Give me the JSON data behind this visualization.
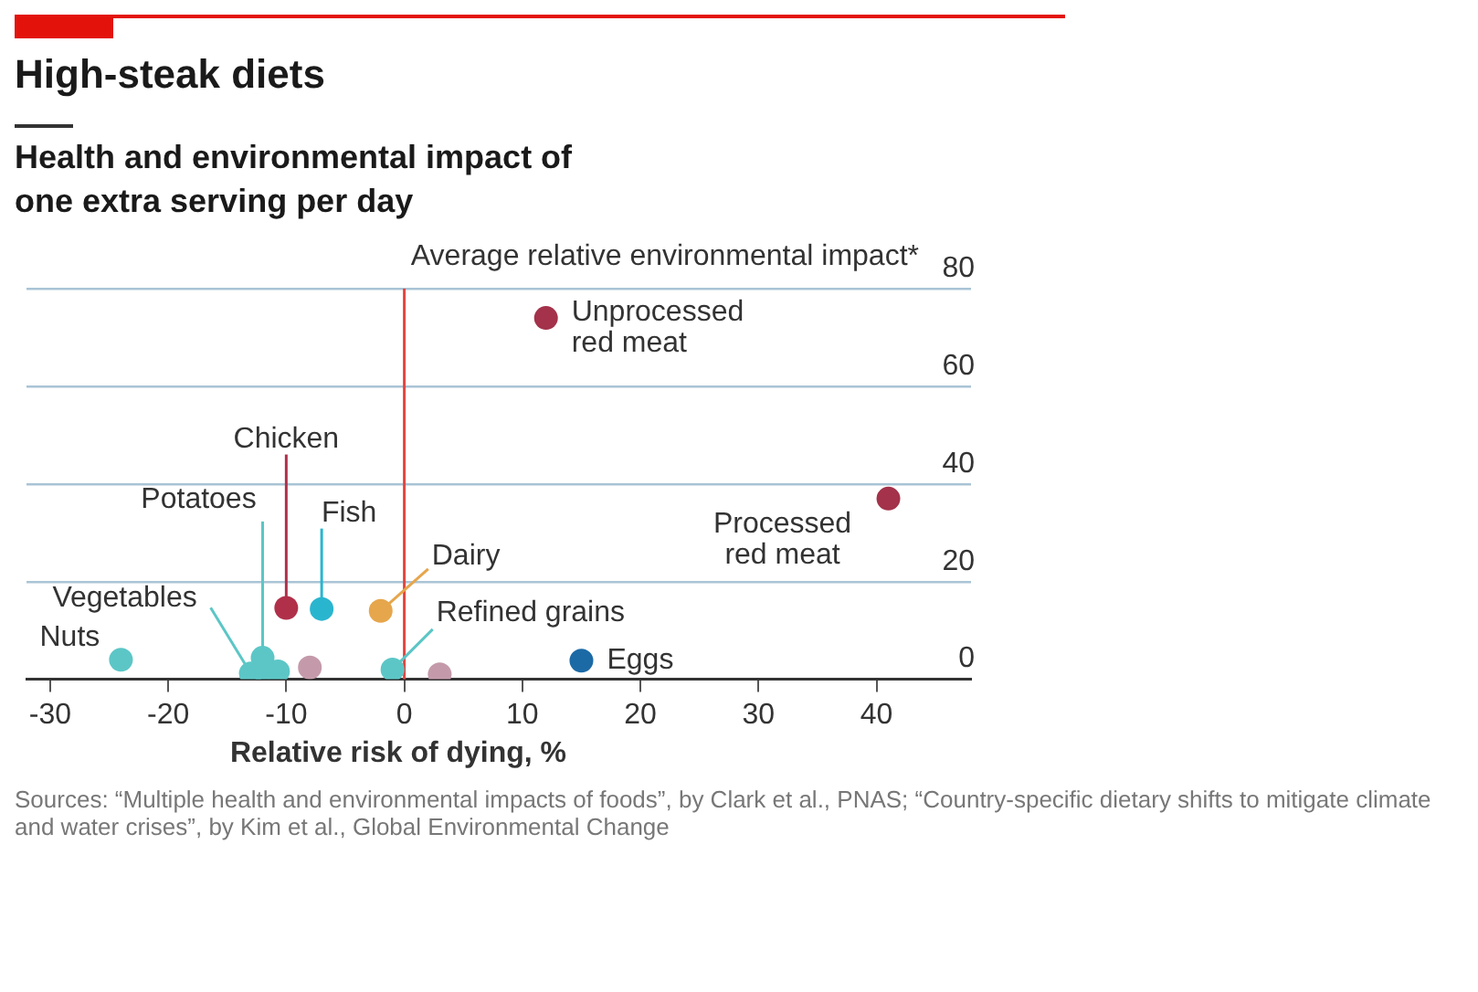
{
  "chart_data": {
    "type": "scatter",
    "title": "High-steak diets",
    "subtitle": "Health and environmental impact of one extra serving per day",
    "xlabel": "Relative risk of dying, %",
    "ylabel": "Average relative environmental impact*",
    "annotations": [
      "Sources: “Multiple health and environmental impacts of foods”, by Clark et al., PNAS; “Country-specific dietary shifts to mitigate climate and water crises”, by Kim et al., Global Environmental Change"
    ],
    "xlim": [
      -32,
      48
    ],
    "xticks": [
      -30,
      -20,
      -10,
      0,
      10,
      20,
      30,
      40
    ],
    "ylim": [
      0,
      80
    ],
    "yticks": [
      0,
      20,
      40,
      60,
      80
    ],
    "grid": "y",
    "legend": false,
    "marker": "circle",
    "ref_lines": [
      {
        "axis": "x",
        "value": 0,
        "color": "#e3453f"
      }
    ],
    "series": [
      {
        "name": "Unprocessed red meat",
        "color": "#a3324a",
        "x": [
          12
        ],
        "values": [
          74
        ]
      },
      {
        "name": "Processed red meat",
        "color": "#a3324a",
        "x": [
          41
        ],
        "values": [
          37
        ]
      },
      {
        "name": "Chicken",
        "color": "#b0304a",
        "x": [
          -10
        ],
        "values": [
          14.6
        ]
      },
      {
        "name": "Fish",
        "color": "#2ab5cf",
        "x": [
          -7
        ],
        "values": [
          14.4
        ]
      },
      {
        "name": "Dairy",
        "color": "#e6a64c",
        "x": [
          -2
        ],
        "values": [
          14
        ]
      },
      {
        "name": "Nuts",
        "color": "#5cc6c6",
        "x": [
          -24
        ],
        "values": [
          4
        ]
      },
      {
        "name": "Vegetables",
        "color": "#5cc6c6",
        "x": [
          -13
        ],
        "values": [
          1.2
        ]
      },
      {
        "name": "Potatoes",
        "color": "#5cc6c6",
        "x": [
          -12
        ],
        "values": [
          2
        ]
      },
      {
        "name": "Refined grains",
        "color": "#5cc6c6",
        "x": [
          -1
        ],
        "values": [
          2
        ]
      },
      {
        "name": "Eggs",
        "color": "#1b6aa6",
        "x": [
          15
        ],
        "values": [
          3.8
        ]
      },
      {
        "color": "#5cc6c6",
        "x": [
          -12,
          -10.7
        ],
        "values": [
          4.4,
          1.6
        ]
      },
      {
        "color": "#c49aaa",
        "x": [
          -8,
          3
        ],
        "values": [
          2.4,
          1
        ]
      }
    ]
  }
}
